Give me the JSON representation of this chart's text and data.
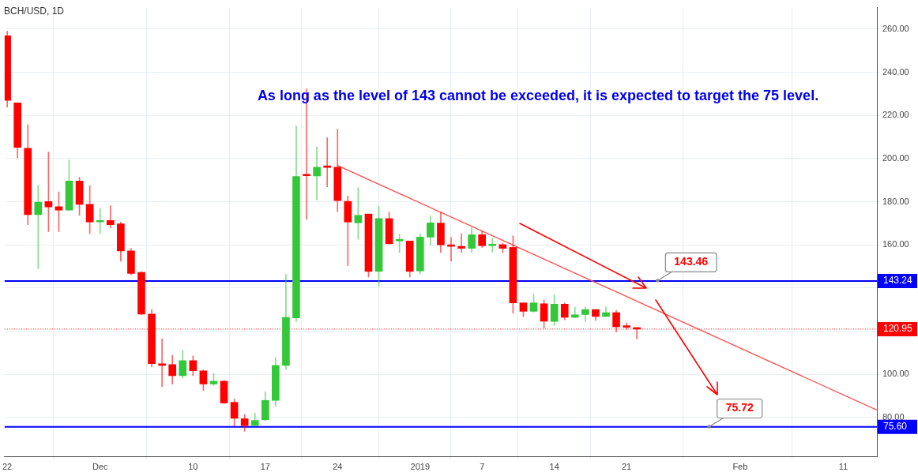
{
  "chart_data": {
    "type": "candlestick",
    "title": "BCH/USD, 1D",
    "xlim": [
      "2018-11-21T18:00",
      "2019-02-14T06:00"
    ],
    "ylim": [
      62,
      270
    ],
    "xticks": [
      {
        "value": "2018-11-22",
        "label": "22"
      },
      {
        "value": "2018-12-01",
        "label": "Dec"
      },
      {
        "value": "2018-12-10",
        "label": "10"
      },
      {
        "value": "2018-12-17",
        "label": "17"
      },
      {
        "value": "2018-12-24",
        "label": "24"
      },
      {
        "value": "2019-01-01",
        "label": "2019"
      },
      {
        "value": "2019-01-07",
        "label": "7"
      },
      {
        "value": "2019-01-14",
        "label": "14"
      },
      {
        "value": "2019-01-21",
        "label": "21"
      },
      {
        "value": "2019-02-01",
        "label": "Feb"
      },
      {
        "value": "2019-02-11",
        "label": "11"
      }
    ],
    "yticks": [
      {
        "value": 80,
        "label": "80.00"
      },
      {
        "value": 100,
        "label": "100.00"
      },
      {
        "value": 120,
        "label": null
      },
      {
        "value": 140,
        "label": null
      },
      {
        "value": 160,
        "label": "160.00"
      },
      {
        "value": 180,
        "label": "180.00"
      },
      {
        "value": 200,
        "label": "200.00"
      },
      {
        "value": 220,
        "label": "220.00"
      },
      {
        "value": 240,
        "label": "240.00"
      },
      {
        "value": 260,
        "label": "260.00"
      }
    ],
    "grid": true,
    "series": [
      {
        "type": "candlestick",
        "x": [
          "2018-11-22",
          "2018-11-23",
          "2018-11-24",
          "2018-11-25",
          "2018-11-26",
          "2018-11-27",
          "2018-11-28",
          "2018-11-29",
          "2018-11-30",
          "2018-12-01",
          "2018-12-02",
          "2018-12-03",
          "2018-12-04",
          "2018-12-05",
          "2018-12-06",
          "2018-12-07",
          "2018-12-08",
          "2018-12-09",
          "2018-12-10",
          "2018-12-11",
          "2018-12-12",
          "2018-12-13",
          "2018-12-14",
          "2018-12-15",
          "2018-12-16",
          "2018-12-17",
          "2018-12-18",
          "2018-12-19",
          "2018-12-20",
          "2018-12-21",
          "2018-12-22",
          "2018-12-23",
          "2018-12-24",
          "2018-12-25",
          "2018-12-26",
          "2018-12-27",
          "2018-12-28",
          "2018-12-29",
          "2018-12-30",
          "2018-12-31",
          "2019-01-01",
          "2019-01-02",
          "2019-01-03",
          "2019-01-04",
          "2019-01-05",
          "2019-01-06",
          "2019-01-07",
          "2019-01-08",
          "2019-01-09",
          "2019-01-10",
          "2019-01-11",
          "2019-01-12",
          "2019-01-13",
          "2019-01-14",
          "2019-01-15",
          "2019-01-16",
          "2019-01-17",
          "2019-01-18",
          "2019-01-19",
          "2019-01-20",
          "2019-01-21",
          "2019-01-22"
        ],
        "ohlc": [
          [
            256.9,
            259.0,
            223.9,
            227.0
          ],
          [
            225.8,
            225.8,
            200.4,
            205.2
          ],
          [
            204.8,
            215.8,
            169.3,
            174.0
          ],
          [
            174.0,
            187.6,
            148.9,
            179.8
          ],
          [
            180.1,
            203.0,
            166.1,
            177.6
          ],
          [
            177.7,
            184.6,
            166.1,
            176.1
          ],
          [
            176.1,
            199.3,
            175.8,
            189.6
          ],
          [
            189.6,
            191.3,
            173.7,
            178.8
          ],
          [
            178.8,
            187.4,
            165.2,
            170.6
          ],
          [
            170.6,
            177.0,
            165.2,
            170.8
          ],
          [
            171.3,
            178.2,
            167.9,
            169.3
          ],
          [
            169.7,
            170.6,
            152.4,
            157.2
          ],
          [
            157.2,
            158.4,
            146.1,
            146.7
          ],
          [
            147.2,
            147.6,
            127.6,
            127.9
          ],
          [
            127.9,
            130.0,
            103.4,
            104.9
          ],
          [
            104.6,
            116.4,
            94.3,
            104.1
          ],
          [
            104.5,
            108.9,
            95.4,
            99.4
          ],
          [
            99.4,
            111.2,
            98.2,
            106.3
          ],
          [
            106.3,
            108.5,
            99.4,
            101.6
          ],
          [
            101.6,
            102.0,
            92.5,
            95.5
          ],
          [
            95.5,
            100.3,
            94.8,
            96.8
          ],
          [
            96.8,
            97.2,
            86.4,
            86.7
          ],
          [
            87.0,
            88.5,
            76.0,
            79.6
          ],
          [
            79.4,
            81.4,
            73.6,
            76.2
          ],
          [
            76.2,
            82.0,
            76.2,
            78.6
          ],
          [
            78.9,
            91.8,
            78.6,
            87.9
          ],
          [
            87.9,
            107.7,
            85.3,
            104.1
          ],
          [
            104.1,
            146.3,
            102.3,
            126.4
          ],
          [
            126.2,
            215.1,
            124.4,
            191.7
          ],
          [
            192.3,
            232.3,
            171.8,
            192.0
          ],
          [
            191.9,
            205.4,
            180.8,
            196.0
          ],
          [
            196.2,
            209.6,
            186.9,
            195.9
          ],
          [
            196.0,
            213.6,
            175.4,
            180.5
          ],
          [
            180.2,
            182.6,
            150.3,
            170.6
          ],
          [
            170.2,
            186.5,
            162.6,
            173.7
          ],
          [
            174.3,
            174.3,
            145.1,
            147.7
          ],
          [
            147.7,
            177.9,
            140.8,
            172.2
          ],
          [
            172.2,
            175.2,
            160.5,
            160.5
          ],
          [
            161.8,
            165.0,
            156.4,
            162.0
          ],
          [
            161.8,
            161.8,
            145.1,
            147.7
          ],
          [
            147.9,
            165.0,
            146.5,
            163.6
          ],
          [
            163.6,
            173.4,
            159.9,
            170.2
          ],
          [
            170.1,
            175.2,
            156.4,
            160.0
          ],
          [
            160.0,
            163.4,
            152.4,
            159.3
          ],
          [
            159.3,
            165.2,
            156.4,
            158.4
          ],
          [
            158.4,
            168.0,
            156.4,
            164.7
          ],
          [
            164.7,
            166.2,
            158.8,
            159.6
          ],
          [
            159.6,
            163.0,
            156.6,
            159.8
          ],
          [
            160.1,
            160.8,
            156.3,
            158.4
          ],
          [
            158.8,
            164.2,
            128.3,
            133.1
          ],
          [
            133.1,
            133.1,
            126.8,
            129.2
          ],
          [
            129.2,
            137.2,
            128.8,
            133.1
          ],
          [
            132.7,
            134.5,
            121.4,
            124.6
          ],
          [
            124.5,
            136.9,
            122.6,
            132.5
          ],
          [
            132.5,
            133.1,
            125.2,
            126.4
          ],
          [
            126.4,
            131.2,
            126.2,
            127.6
          ],
          [
            127.7,
            131.2,
            124.4,
            130.0
          ],
          [
            130.0,
            130.0,
            125.0,
            126.8
          ],
          [
            126.8,
            131.2,
            126.8,
            128.6
          ],
          [
            128.6,
            129.6,
            119.6,
            122.0
          ],
          [
            122.2,
            123.8,
            120.8,
            121.8
          ],
          [
            121.4,
            121.6,
            116.4,
            120.95
          ]
        ],
        "colors": [
          "#ff0000",
          "#ff0000",
          "#ff0000",
          "#32c83a",
          "#ff0000",
          "#ff0000",
          "#32c83a",
          "#ff0000",
          "#ff0000",
          "#32c83a",
          "#ff0000",
          "#ff0000",
          "#ff0000",
          "#ff0000",
          "#ff0000",
          "#ff0000",
          "#ff0000",
          "#32c83a",
          "#ff0000",
          "#ff0000",
          "#32c83a",
          "#ff0000",
          "#ff0000",
          "#ff0000",
          "#32c83a",
          "#32c83a",
          "#32c83a",
          "#32c83a",
          "#32c83a",
          "#ff0000",
          "#32c83a",
          "#ff0000",
          "#ff0000",
          "#ff0000",
          "#32c83a",
          "#ff0000",
          "#32c83a",
          "#ff0000",
          "#32c83a",
          "#ff0000",
          "#32c83a",
          "#32c83a",
          "#ff0000",
          "#ff0000",
          "#ff0000",
          "#32c83a",
          "#ff0000",
          "#32c83a",
          "#ff0000",
          "#ff0000",
          "#ff0000",
          "#32c83a",
          "#ff0000",
          "#32c83a",
          "#ff0000",
          "#32c83a",
          "#32c83a",
          "#ff0000",
          "#32c83a",
          "#ff0000",
          "#ff0000",
          "#ff0000"
        ]
      },
      {
        "type": "line",
        "x": [
          "2018-12-24",
          "2019-02-14T06:00"
        ],
        "values": [
          196.8,
          83.4
        ],
        "color": "#ff4d4d"
      }
    ],
    "ref_lines": [
      {
        "axis": "y",
        "value": 143.24,
        "label": "143.24",
        "color": "#0000ff",
        "line_style": "solid"
      },
      {
        "axis": "y",
        "value": 75.6,
        "label": "75.60",
        "color": "#0000ff",
        "line_style": "solid"
      },
      {
        "axis": "y",
        "value": 120.95,
        "label": "120.95",
        "color": "#ff0000",
        "line_style": "dotted"
      }
    ],
    "annotations": [
      "As long as the level of 143 cannot be exceeded, it is expected to target the 75 level.",
      {
        "text": "143.46",
        "x": "2019-01-24",
        "y": 143.46
      },
      {
        "text": "75.72",
        "x": "2019-01-29",
        "y": 75.72
      }
    ]
  }
}
